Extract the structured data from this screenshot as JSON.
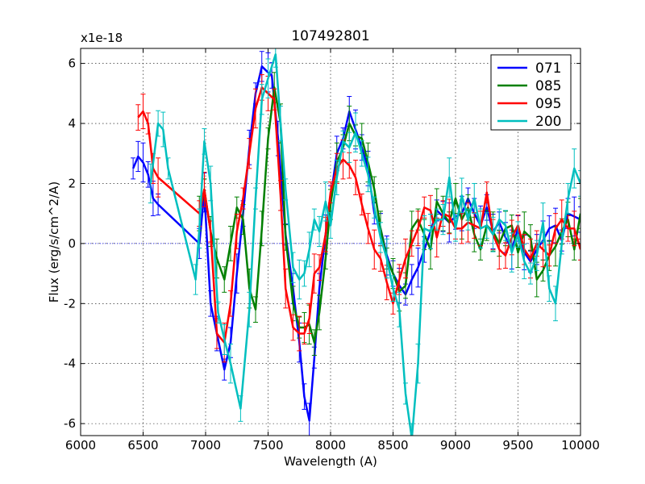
{
  "chart_data": {
    "type": "line",
    "title": "107492801",
    "xlabel": "Wavelength (A)",
    "ylabel": "Flux (erg/s/cm^2/A)",
    "offset_text": "x1e-18",
    "xlim": [
      6000,
      10000
    ],
    "ylim": [
      -6.4,
      6.5
    ],
    "grid": true,
    "legend_position": "top-right",
    "xticks": [
      6000,
      6500,
      7000,
      7500,
      8000,
      8500,
      9000,
      9500,
      10000
    ],
    "xtick_labels": [
      "6000",
      "6500",
      "7000",
      "7500",
      "8000",
      "8500",
      "9000",
      "9500",
      "10000"
    ],
    "yticks": [
      -6,
      -4,
      -2,
      0,
      2,
      4,
      6
    ],
    "ytick_labels": [
      "-6",
      "-4",
      "-2",
      "0",
      "2",
      "4",
      "6"
    ],
    "series": [
      {
        "name": "071",
        "color": "#0000ff",
        "x": [
          6420,
          6460,
          6500,
          6540,
          6580,
          6620,
          6950,
          6990,
          7040,
          7090,
          7150,
          7200,
          7250,
          7300,
          7350,
          7400,
          7450,
          7500,
          7530,
          7580,
          7640,
          7700,
          7750,
          7790,
          7830,
          7870,
          7910,
          7960,
          8000,
          8050,
          8100,
          8150,
          8200,
          8250,
          8300,
          8350,
          8400,
          8450,
          8500,
          8550,
          8600,
          8650,
          8700,
          8750,
          8800,
          8850,
          8900,
          8950,
          9000,
          9050,
          9100,
          9150,
          9200,
          9250,
          9300,
          9350,
          9400,
          9450,
          9500,
          9550,
          9600,
          9650,
          9700,
          9750,
          9800,
          9850,
          9900,
          9950,
          10000
        ],
        "y": [
          2.5,
          2.9,
          2.7,
          2.3,
          1.5,
          1.3,
          0.0,
          1.7,
          -2.0,
          -3.0,
          -4.2,
          -3.3,
          -1.0,
          1.0,
          3.2,
          5.0,
          5.9,
          5.7,
          5.6,
          3.5,
          0.3,
          -1.5,
          -3.3,
          -5.1,
          -5.9,
          -3.8,
          -1.5,
          0.3,
          1.5,
          3.0,
          3.5,
          4.4,
          3.8,
          3.2,
          2.5,
          1.0,
          0.5,
          -0.4,
          -1.0,
          -1.4,
          -1.7,
          -1.2,
          -0.8,
          -0.2,
          0.4,
          1.1,
          0.9,
          0.7,
          0.9,
          1.0,
          1.5,
          1.0,
          0.6,
          1.2,
          0.4,
          0.7,
          0.2,
          -0.2,
          0.5,
          -0.3,
          -0.6,
          -0.2,
          0.1,
          0.5,
          0.6,
          0.1,
          1.0,
          0.9,
          0.8
        ]
      },
      {
        "name": "085",
        "color": "#008000",
        "x": [
          6950,
          6990,
          7040,
          7090,
          7150,
          7200,
          7250,
          7300,
          7350,
          7400,
          7450,
          7500,
          7550,
          7600,
          7640,
          7700,
          7750,
          7790,
          7830,
          7870,
          7910,
          7960,
          8000,
          8050,
          8100,
          8150,
          8200,
          8250,
          8300,
          8350,
          8400,
          8450,
          8500,
          8550,
          8600,
          8650,
          8700,
          8750,
          8800,
          8850,
          8900,
          8950,
          9000,
          9050,
          9100,
          9150,
          9200,
          9250,
          9300,
          9350,
          9400,
          9450,
          9500,
          9550,
          9600,
          9650,
          9700,
          9750,
          9800,
          9850,
          9900,
          9950,
          10000
        ],
        "y": [
          1.0,
          1.8,
          0.4,
          -0.5,
          -1.2,
          0.0,
          1.2,
          0.8,
          -1.5,
          -2.2,
          0.5,
          3.5,
          5.2,
          4.0,
          0.2,
          -2.0,
          -2.8,
          -2.8,
          -2.7,
          -3.3,
          -2.3,
          -0.5,
          1.3,
          2.7,
          3.2,
          4.0,
          3.6,
          3.5,
          2.7,
          1.8,
          0.5,
          -0.5,
          -1.0,
          -1.6,
          -1.4,
          0.5,
          0.8,
          0.3,
          -0.2,
          1.4,
          1.0,
          0.7,
          1.5,
          0.8,
          1.2,
          0.3,
          -0.2,
          0.6,
          0.4,
          0.0,
          0.5,
          0.6,
          -0.3,
          0.4,
          0.2,
          -1.2,
          -0.9,
          -0.4,
          -0.1,
          0.4,
          0.8,
          -0.2,
          1.0
        ]
      },
      {
        "name": "095",
        "color": "#ff0000",
        "x": [
          6460,
          6500,
          6540,
          6580,
          6620,
          6950,
          6990,
          7040,
          7090,
          7150,
          7200,
          7250,
          7300,
          7350,
          7400,
          7450,
          7500,
          7550,
          7600,
          7640,
          7700,
          7750,
          7790,
          7830,
          7870,
          7910,
          7960,
          8000,
          8050,
          8100,
          8150,
          8200,
          8250,
          8300,
          8350,
          8400,
          8450,
          8500,
          8550,
          8600,
          8650,
          8700,
          8750,
          8800,
          8850,
          8900,
          8950,
          9000,
          9050,
          9100,
          9150,
          9200,
          9250,
          9300,
          9350,
          9400,
          9450,
          9500,
          9550,
          9600,
          9650,
          9700,
          9750,
          9800,
          9850,
          9900,
          9950,
          10000
        ],
        "y": [
          4.2,
          4.4,
          4.0,
          2.5,
          2.2,
          1.0,
          1.8,
          0.4,
          -3.0,
          -3.3,
          -2.0,
          0.4,
          1.5,
          3.0,
          4.5,
          5.2,
          5.0,
          4.8,
          1.6,
          -1.5,
          -2.8,
          -3.0,
          -3.0,
          -2.5,
          -1.0,
          -0.8,
          0.3,
          1.7,
          2.5,
          2.8,
          2.6,
          2.2,
          1.3,
          0.5,
          -0.2,
          -0.5,
          -1.3,
          -2.0,
          -1.2,
          -0.5,
          0.0,
          0.5,
          1.2,
          1.1,
          0.2,
          1.0,
          0.9,
          0.5,
          0.5,
          0.7,
          0.6,
          0.5,
          1.7,
          0.3,
          -0.2,
          -0.4,
          0.2,
          0.6,
          -0.2,
          -0.5,
          0.0,
          -0.2,
          -0.4,
          0.5,
          0.8,
          0.5,
          0.5,
          -0.2
        ]
      },
      {
        "name": "200",
        "color": "#00bfbf",
        "x": [
          6560,
          6620,
          6660,
          6700,
          6920,
          6950,
          6990,
          7040,
          7100,
          7150,
          7200,
          7280,
          7350,
          7400,
          7450,
          7500,
          7560,
          7600,
          7640,
          7700,
          7750,
          7790,
          7830,
          7870,
          7910,
          7960,
          8000,
          8050,
          8100,
          8150,
          8200,
          8250,
          8300,
          8350,
          8400,
          8450,
          8500,
          8550,
          8600,
          8650,
          8700,
          8750,
          8800,
          8850,
          8900,
          8950,
          9000,
          9050,
          9100,
          9150,
          9200,
          9250,
          9300,
          9350,
          9400,
          9450,
          9500,
          9550,
          9600,
          9650,
          9700,
          9750,
          9800,
          9850,
          9900,
          9950,
          10000
        ],
        "y": [
          2.0,
          4.0,
          3.8,
          2.5,
          -1.2,
          0.5,
          3.4,
          2.0,
          -2.3,
          -3.2,
          -4.0,
          -5.5,
          -2.2,
          1.5,
          4.8,
          5.5,
          6.3,
          4.0,
          1.8,
          -0.8,
          -1.2,
          -1.0,
          -0.2,
          0.8,
          0.4,
          1.4,
          0.6,
          2.2,
          3.4,
          3.2,
          3.7,
          3.0,
          2.3,
          1.2,
          0.2,
          -0.5,
          -1.5,
          -2.2,
          -5.0,
          -6.5,
          -4.0,
          0.5,
          0.4,
          0.8,
          0.8,
          2.2,
          0.5,
          1.6,
          0.8,
          1.5,
          0.5,
          0.6,
          0.3,
          0.8,
          0.6,
          -0.3,
          0.3,
          -0.6,
          -1.0,
          -0.4,
          0.7,
          -1.5,
          -2.0,
          0.0,
          1.5,
          2.5,
          2.0
        ]
      }
    ]
  }
}
